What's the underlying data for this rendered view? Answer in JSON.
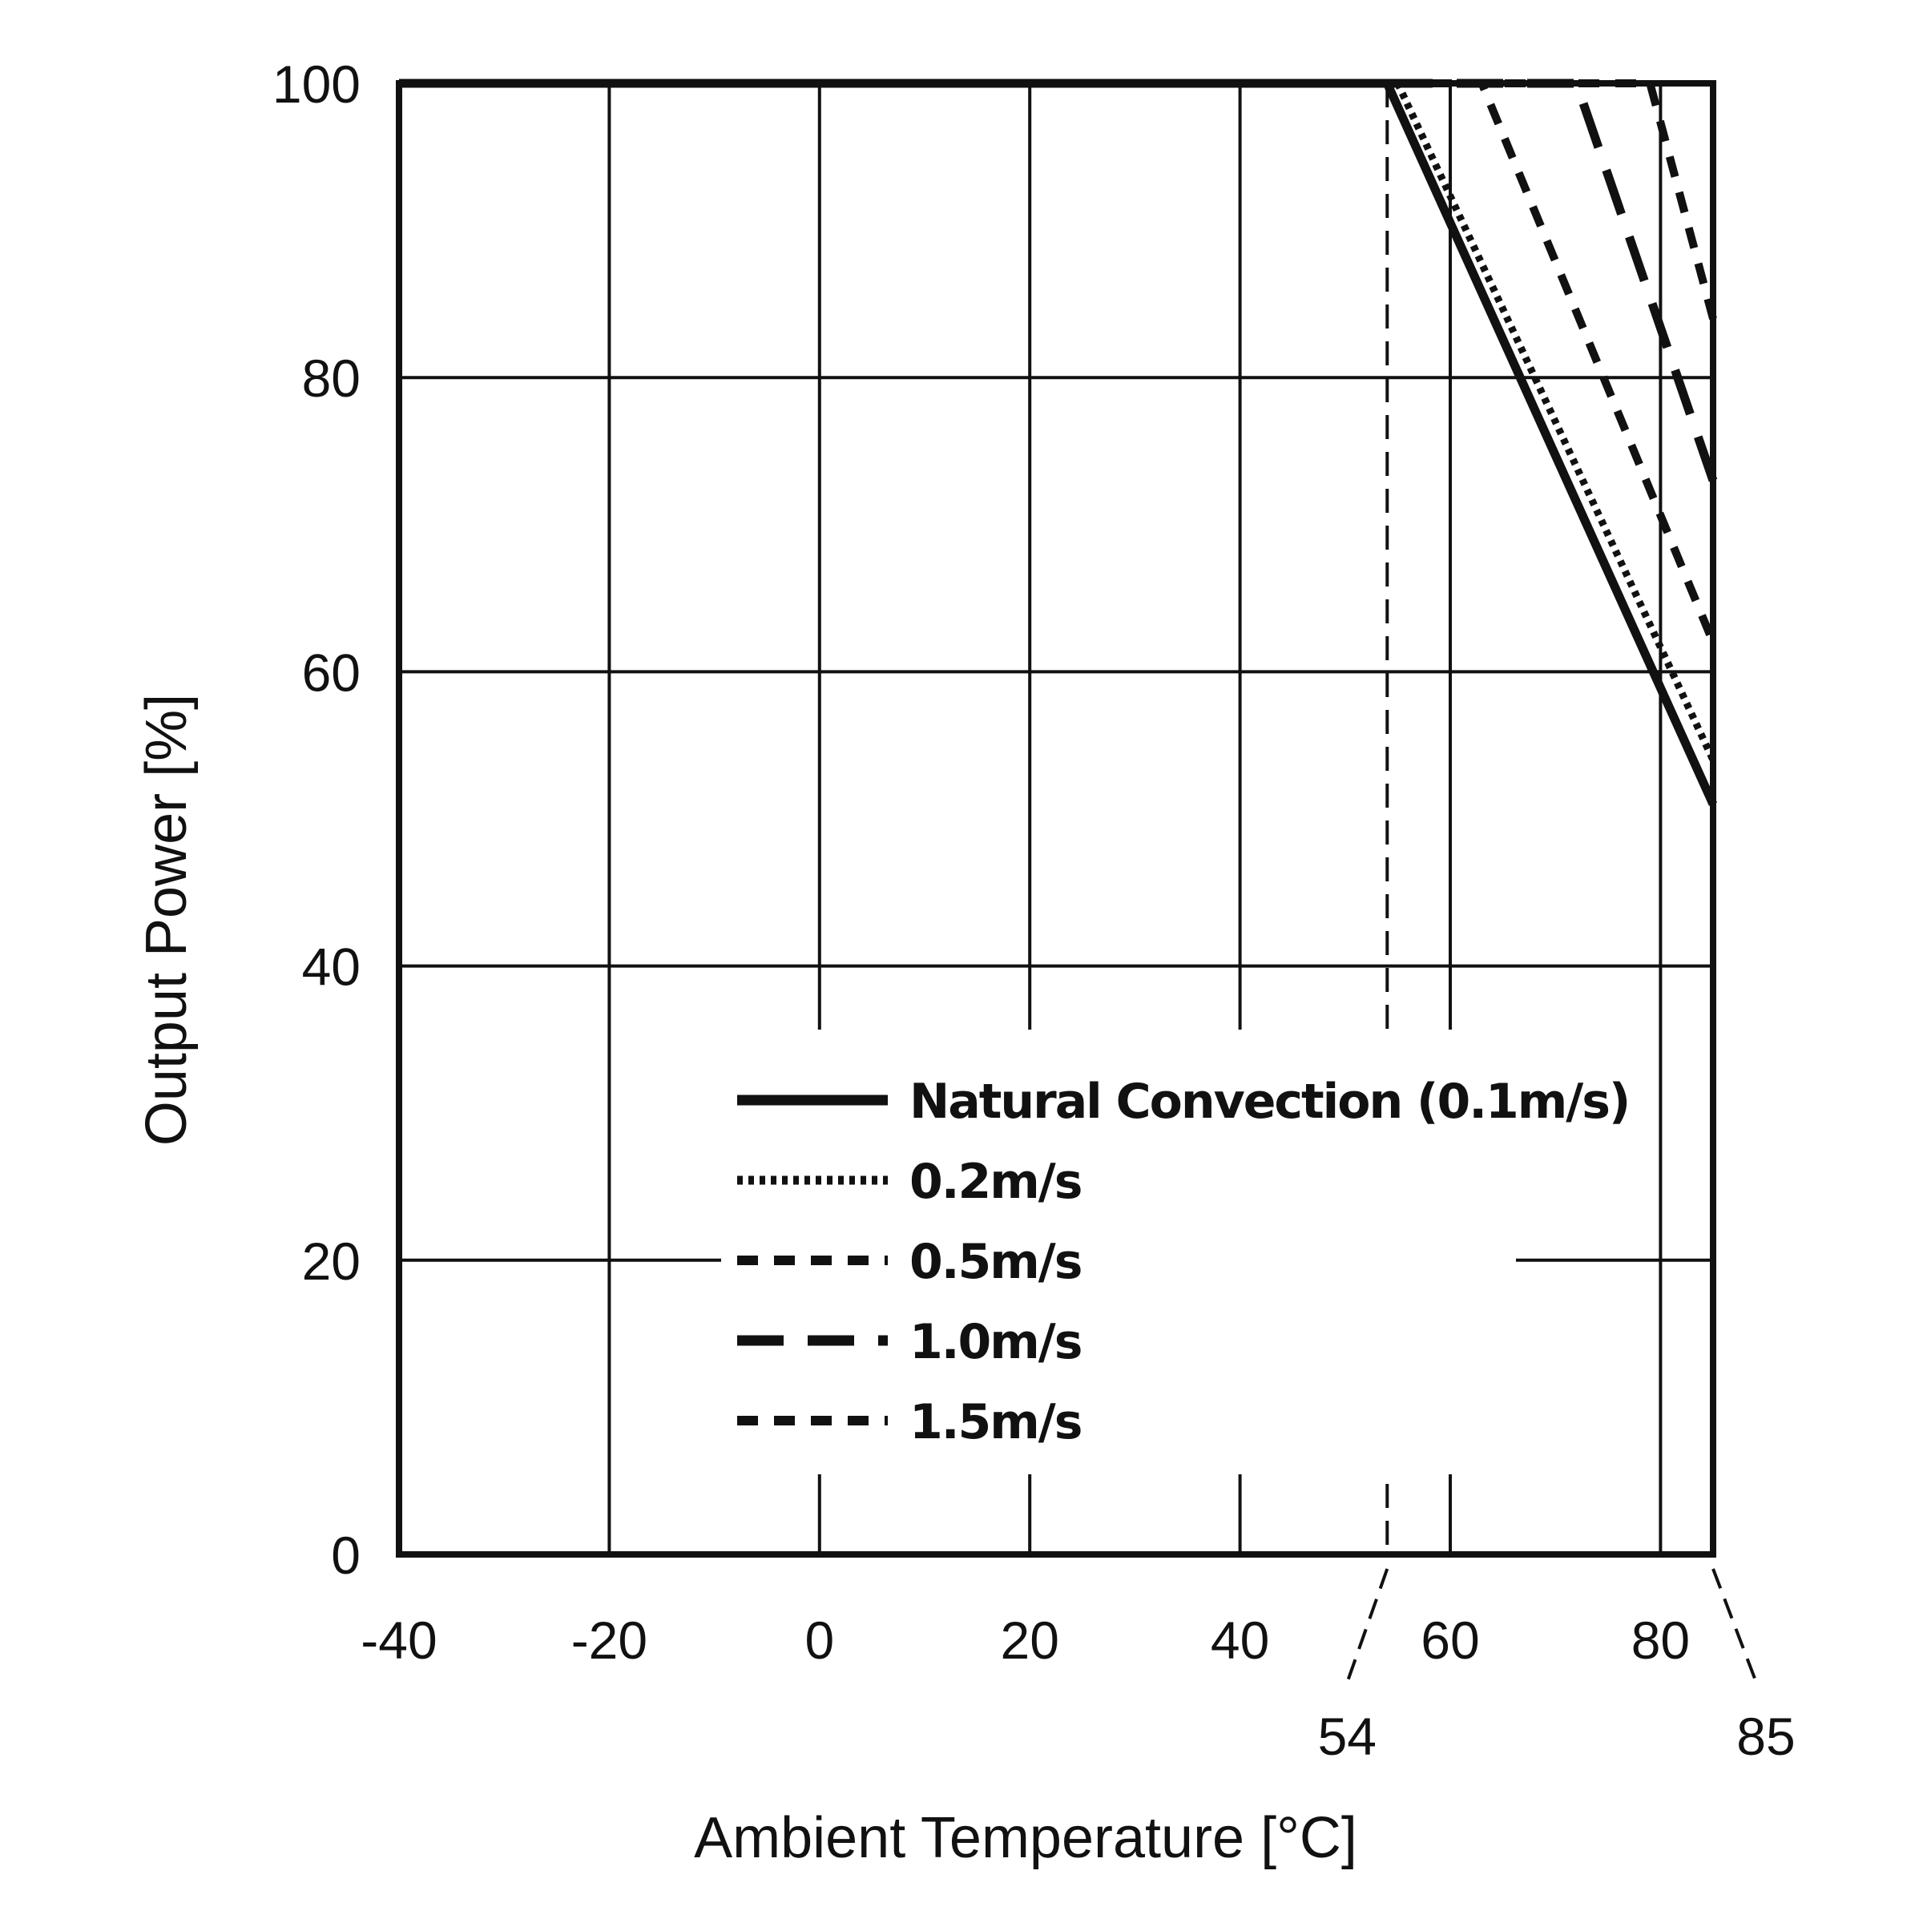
{
  "chart_data": {
    "type": "line",
    "xlabel": "Ambient Temperature [°C]",
    "ylabel": "Output Power [%]",
    "xlim": [
      -40,
      85
    ],
    "ylim": [
      0,
      100
    ],
    "x_ticks": [
      "-40",
      "-20",
      "0",
      "20",
      "40",
      "60",
      "80"
    ],
    "x_tick_values": [
      -40,
      -20,
      0,
      20,
      40,
      60,
      80
    ],
    "y_ticks": [
      "0",
      "20",
      "40",
      "60",
      "80",
      "100"
    ],
    "y_tick_values": [
      0,
      20,
      40,
      60,
      80,
      100
    ],
    "annotations": [
      {
        "label": "54",
        "x": 54
      },
      {
        "label": "85",
        "x": 85
      }
    ],
    "grid": true,
    "legend_position": "bottom-center",
    "series": [
      {
        "name": "Natural Convection (0.1m/s)",
        "style": "solid",
        "x": [
          -40,
          54,
          85
        ],
        "y": [
          100,
          100,
          51
        ]
      },
      {
        "name": "0.2m/s",
        "style": "dotted",
        "x": [
          -40,
          55,
          85
        ],
        "y": [
          100,
          100,
          54
        ]
      },
      {
        "name": "0.5m/s",
        "style": "short-dash",
        "x": [
          -40,
          63,
          85
        ],
        "y": [
          100,
          100,
          62
        ]
      },
      {
        "name": "1.0m/s",
        "style": "long-dash",
        "x": [
          -40,
          72,
          85
        ],
        "y": [
          100,
          100,
          73
        ]
      },
      {
        "name": "1.5m/s",
        "style": "short-dash",
        "x": [
          -40,
          79,
          85
        ],
        "y": [
          100,
          100,
          84
        ]
      }
    ]
  }
}
